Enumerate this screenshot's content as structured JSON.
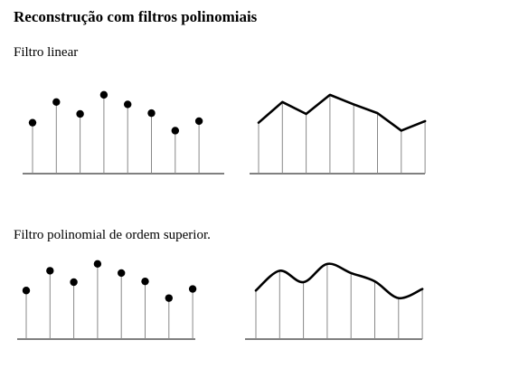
{
  "title": "Reconstrução com filtros polinomiais",
  "rows": [
    {
      "label": "Filtro linear",
      "samples": [
        0.64,
        0.9,
        0.75,
        0.99,
        0.87,
        0.76,
        0.54,
        0.66
      ],
      "reconstruction": "linear"
    },
    {
      "label": "Filtro polinomial de ordem superior.",
      "samples": [
        0.64,
        0.9,
        0.75,
        0.99,
        0.87,
        0.76,
        0.54,
        0.66
      ],
      "reconstruction": "smooth"
    }
  ]
}
